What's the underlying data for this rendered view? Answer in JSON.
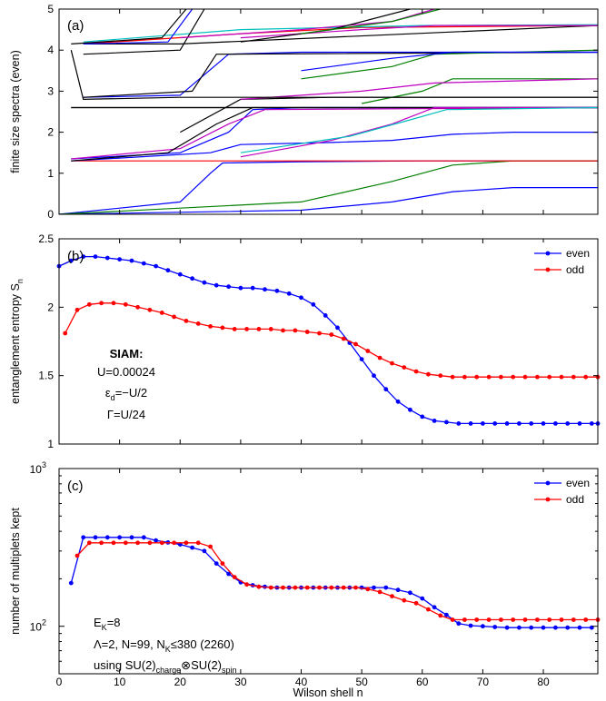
{
  "x_axis": {
    "label": "Wilson shell n",
    "range": [
      0,
      89
    ],
    "ticks": [
      "0",
      "10",
      "20",
      "30",
      "40",
      "50",
      "60",
      "70",
      "80"
    ]
  },
  "chart_data": [
    {
      "panel": "(a)",
      "type": "line",
      "ylabel": "finite size spectra (even)",
      "ylim": [
        0,
        5
      ],
      "yticks": [
        "0",
        "1",
        "2",
        "3",
        "4",
        "5"
      ],
      "colors": [
        "#0000ff",
        "#ff0000",
        "#008000",
        "#00bfbf",
        "#bf00bf",
        "#000000"
      ],
      "series": [
        {
          "color": "#0000ff",
          "points": [
            [
              0,
              0
            ],
            [
              20,
              0.3
            ],
            [
              25,
              1.0
            ],
            [
              27,
              1.25
            ],
            [
              40,
              1.28
            ],
            [
              60,
              1.3
            ],
            [
              89,
              1.3
            ]
          ]
        },
        {
          "color": "#0000ff",
          "points": [
            [
              0,
              0
            ],
            [
              40,
              0.1
            ],
            [
              55,
              0.3
            ],
            [
              65,
              0.55
            ],
            [
              75,
              0.65
            ],
            [
              89,
              0.65
            ]
          ]
        },
        {
          "color": "#008000",
          "points": [
            [
              0,
              0
            ],
            [
              40,
              0.3
            ],
            [
              55,
              0.8
            ],
            [
              65,
              1.2
            ],
            [
              75,
              1.3
            ],
            [
              89,
              1.3
            ]
          ]
        },
        {
          "color": "#ff0000",
          "points": [
            [
              2,
              1.3
            ],
            [
              30,
              1.3
            ],
            [
              89,
              1.3
            ]
          ]
        },
        {
          "color": "#0000ff",
          "points": [
            [
              2,
              1.3
            ],
            [
              25,
              1.5
            ],
            [
              30,
              1.7
            ],
            [
              45,
              1.75
            ],
            [
              55,
              1.8
            ],
            [
              65,
              1.95
            ],
            [
              75,
              2.0
            ],
            [
              89,
              2.0
            ]
          ]
        },
        {
          "color": "#000000",
          "points": [
            [
              2,
              2.6
            ],
            [
              30,
              2.6
            ],
            [
              89,
              2.6
            ]
          ]
        },
        {
          "color": "#000000",
          "points": [
            [
              2,
              2.6
            ],
            [
              25,
              2.6
            ],
            [
              30,
              2.6
            ],
            [
              50,
              2.6
            ],
            [
              89,
              2.6
            ]
          ]
        },
        {
          "color": "#0000ff",
          "points": [
            [
              2,
              1.35
            ],
            [
              20,
              1.5
            ],
            [
              28,
              2.0
            ],
            [
              32,
              2.55
            ],
            [
              40,
              2.6
            ],
            [
              89,
              2.6
            ]
          ]
        },
        {
          "color": "#bf00bf",
          "points": [
            [
              2,
              1.35
            ],
            [
              20,
              1.6
            ],
            [
              28,
              2.2
            ],
            [
              34,
              2.55
            ],
            [
              89,
              2.6
            ]
          ]
        },
        {
          "color": "#000000",
          "points": [
            [
              2,
              1.3
            ],
            [
              18,
              1.5
            ],
            [
              26,
              2.2
            ],
            [
              32,
              2.6
            ],
            [
              89,
              2.6
            ]
          ]
        },
        {
          "color": "#bf00bf",
          "points": [
            [
              30,
              1.4
            ],
            [
              45,
              1.8
            ],
            [
              55,
              2.2
            ],
            [
              62,
              2.6
            ],
            [
              89,
              2.6
            ]
          ]
        },
        {
          "color": "#00bfbf",
          "points": [
            [
              30,
              1.5
            ],
            [
              48,
              1.9
            ],
            [
              58,
              2.3
            ],
            [
              64,
              2.55
            ],
            [
              89,
              2.6
            ]
          ]
        },
        {
          "color": "#000000",
          "points": [
            [
              20,
              2.0
            ],
            [
              30,
              2.8
            ],
            [
              45,
              2.85
            ],
            [
              89,
              2.85
            ]
          ]
        },
        {
          "color": "#008000",
          "points": [
            [
              50,
              2.7
            ],
            [
              60,
              3.0
            ],
            [
              65,
              3.3
            ],
            [
              89,
              3.3
            ]
          ]
        },
        {
          "color": "#bf00bf",
          "points": [
            [
              30,
              2.8
            ],
            [
              50,
              3.0
            ],
            [
              62,
              3.2
            ],
            [
              89,
              3.3
            ]
          ]
        },
        {
          "color": "#000000",
          "points": [
            [
              2,
              4.0
            ],
            [
              4,
              2.8
            ],
            [
              20,
              2.85
            ],
            [
              89,
              2.85
            ]
          ]
        },
        {
          "color": "#0000ff",
          "points": [
            [
              4,
              2.85
            ],
            [
              20,
              2.9
            ],
            [
              28,
              3.9
            ],
            [
              40,
              3.95
            ],
            [
              89,
              3.95
            ]
          ]
        },
        {
          "color": "#000000",
          "points": [
            [
              4,
              2.85
            ],
            [
              22,
              3.0
            ],
            [
              26,
              3.9
            ],
            [
              89,
              3.95
            ]
          ]
        },
        {
          "color": "#008000",
          "points": [
            [
              40,
              3.3
            ],
            [
              55,
              3.6
            ],
            [
              62,
              3.9
            ],
            [
              89,
              4.0
            ]
          ]
        },
        {
          "color": "#0000ff",
          "points": [
            [
              40,
              3.5
            ],
            [
              55,
              3.8
            ],
            [
              65,
              3.95
            ],
            [
              89,
              3.95
            ]
          ]
        },
        {
          "color": "#000000",
          "points": [
            [
              4,
              4.15
            ],
            [
              20,
              4.15
            ],
            [
              89,
              4.6
            ]
          ]
        },
        {
          "color": "#ff0000",
          "points": [
            [
              4,
              4.15
            ],
            [
              30,
              4.4
            ],
            [
              50,
              4.55
            ],
            [
              89,
              4.6
            ]
          ]
        },
        {
          "color": "#00bfbf",
          "points": [
            [
              4,
              4.2
            ],
            [
              30,
              4.5
            ],
            [
              60,
              4.6
            ],
            [
              89,
              4.62
            ]
          ]
        },
        {
          "color": "#bf00bf",
          "points": [
            [
              30,
              4.3
            ],
            [
              50,
              4.5
            ],
            [
              62,
              4.6
            ],
            [
              89,
              4.6
            ]
          ]
        },
        {
          "color": "#000000",
          "points": [
            [
              4,
              3.9
            ],
            [
              20,
              4.0
            ],
            [
              24,
              5.0
            ]
          ]
        },
        {
          "color": "#0000ff",
          "points": [
            [
              4,
              4.15
            ],
            [
              18,
              4.2
            ],
            [
              22,
              5.0
            ]
          ]
        },
        {
          "color": "#000000",
          "points": [
            [
              2,
              4.15
            ],
            [
              17,
              4.3
            ],
            [
              21,
              5.0
            ]
          ]
        },
        {
          "color": "#bf00bf",
          "points": [
            [
              20,
              4.3
            ],
            [
              40,
              4.5
            ],
            [
              55,
              4.7
            ],
            [
              62,
              5.0
            ]
          ]
        },
        {
          "color": "#000000",
          "points": [
            [
              30,
              4.2
            ],
            [
              45,
              4.5
            ],
            [
              58,
              5.0
            ]
          ]
        },
        {
          "color": "#008000",
          "points": [
            [
              40,
              4.4
            ],
            [
              55,
              4.7
            ],
            [
              63,
              5.0
            ]
          ]
        }
      ]
    },
    {
      "panel": "(b)",
      "type": "line",
      "ylabel": "entanglement entropy S",
      "ylabel_sub": "n",
      "ylim": [
        1,
        2.5
      ],
      "yticks": [
        "1",
        "1.5",
        "2",
        "2.5"
      ],
      "legend": [
        "even",
        "odd"
      ],
      "legend_position": "top-right",
      "annotation": [
        "SIAM:",
        "U=0.00024",
        "ε",
        "d",
        "=−U/2",
        "Γ=U/24"
      ],
      "series": [
        {
          "name": "even",
          "color": "#0000ff",
          "x": [
            0,
            2,
            4,
            6,
            8,
            10,
            12,
            14,
            16,
            18,
            20,
            22,
            24,
            26,
            28,
            30,
            32,
            34,
            36,
            38,
            40,
            42,
            44,
            46,
            48,
            50,
            52,
            54,
            56,
            58,
            60,
            62,
            64,
            66,
            68,
            70,
            72,
            74,
            76,
            78,
            80,
            82,
            84,
            86,
            88,
            89
          ],
          "y": [
            2.3,
            2.34,
            2.37,
            2.37,
            2.36,
            2.35,
            2.34,
            2.32,
            2.3,
            2.27,
            2.24,
            2.21,
            2.18,
            2.16,
            2.15,
            2.14,
            2.14,
            2.13,
            2.12,
            2.1,
            2.07,
            2.02,
            1.94,
            1.85,
            1.74,
            1.62,
            1.5,
            1.4,
            1.31,
            1.25,
            1.2,
            1.17,
            1.16,
            1.15,
            1.15,
            1.15,
            1.15,
            1.15,
            1.15,
            1.15,
            1.15,
            1.15,
            1.15,
            1.15,
            1.15,
            1.15
          ]
        },
        {
          "name": "odd",
          "color": "#ff0000",
          "x": [
            1,
            3,
            5,
            7,
            9,
            11,
            13,
            15,
            17,
            19,
            21,
            23,
            25,
            27,
            29,
            31,
            33,
            35,
            37,
            39,
            41,
            43,
            45,
            47,
            49,
            51,
            53,
            55,
            57,
            59,
            61,
            63,
            65,
            67,
            69,
            71,
            73,
            75,
            77,
            79,
            81,
            83,
            85,
            87,
            89
          ],
          "y": [
            1.81,
            1.98,
            2.02,
            2.03,
            2.03,
            2.02,
            2.0,
            1.98,
            1.96,
            1.93,
            1.9,
            1.88,
            1.86,
            1.85,
            1.84,
            1.84,
            1.84,
            1.84,
            1.83,
            1.83,
            1.82,
            1.81,
            1.8,
            1.77,
            1.73,
            1.68,
            1.63,
            1.59,
            1.56,
            1.53,
            1.51,
            1.5,
            1.49,
            1.49,
            1.49,
            1.49,
            1.49,
            1.49,
            1.49,
            1.49,
            1.49,
            1.49,
            1.49,
            1.49,
            1.49
          ]
        }
      ]
    },
    {
      "panel": "(c)",
      "type": "line",
      "ylabel": "number of multiplets kept",
      "yscale": "log",
      "ylim": [
        50,
        1000
      ],
      "yticks": [
        {
          "base": "10",
          "exp": "2"
        },
        {
          "base": "10",
          "exp": "3"
        }
      ],
      "legend": [
        "even",
        "odd"
      ],
      "legend_position": "top-right",
      "annotation": {
        "line1": [
          "E",
          "K",
          "=8"
        ],
        "line2": [
          "Λ=2, N=99, N",
          "K",
          "≤380 (2260)"
        ],
        "line3": [
          "using SU(2)",
          "charge",
          "⊗SU(2)",
          "spin"
        ]
      },
      "series": [
        {
          "name": "even",
          "color": "#0000ff",
          "x": [
            2,
            4,
            6,
            8,
            10,
            12,
            14,
            16,
            18,
            20,
            22,
            24,
            26,
            28,
            30,
            32,
            34,
            36,
            38,
            40,
            42,
            44,
            46,
            48,
            50,
            52,
            54,
            56,
            58,
            60,
            62,
            64,
            66,
            68,
            70,
            72,
            74,
            76,
            78,
            80,
            82,
            84,
            86,
            88
          ],
          "y": [
            188,
            366,
            366,
            366,
            366,
            366,
            366,
            350,
            340,
            330,
            315,
            300,
            250,
            215,
            190,
            182,
            178,
            176,
            176,
            176,
            176,
            176,
            176,
            176,
            176,
            176,
            176,
            170,
            163,
            150,
            132,
            118,
            104,
            101,
            100,
            99,
            98,
            98,
            98,
            98,
            98,
            98,
            98,
            98
          ]
        },
        {
          "name": "odd",
          "color": "#ff0000",
          "x": [
            3,
            5,
            7,
            9,
            11,
            13,
            15,
            17,
            19,
            21,
            23,
            25,
            27,
            29,
            31,
            33,
            35,
            37,
            39,
            41,
            43,
            45,
            47,
            49,
            51,
            53,
            55,
            57,
            59,
            61,
            63,
            65,
            67,
            69,
            71,
            73,
            75,
            77,
            79,
            81,
            83,
            85,
            87,
            89
          ],
          "y": [
            280,
            338,
            338,
            338,
            338,
            338,
            338,
            338,
            338,
            338,
            338,
            320,
            250,
            205,
            184,
            178,
            176,
            176,
            176,
            176,
            176,
            176,
            176,
            176,
            172,
            165,
            155,
            146,
            140,
            128,
            117,
            110,
            110,
            110,
            110,
            110,
            110,
            110,
            110,
            110,
            110,
            110,
            110,
            110
          ]
        }
      ]
    }
  ]
}
